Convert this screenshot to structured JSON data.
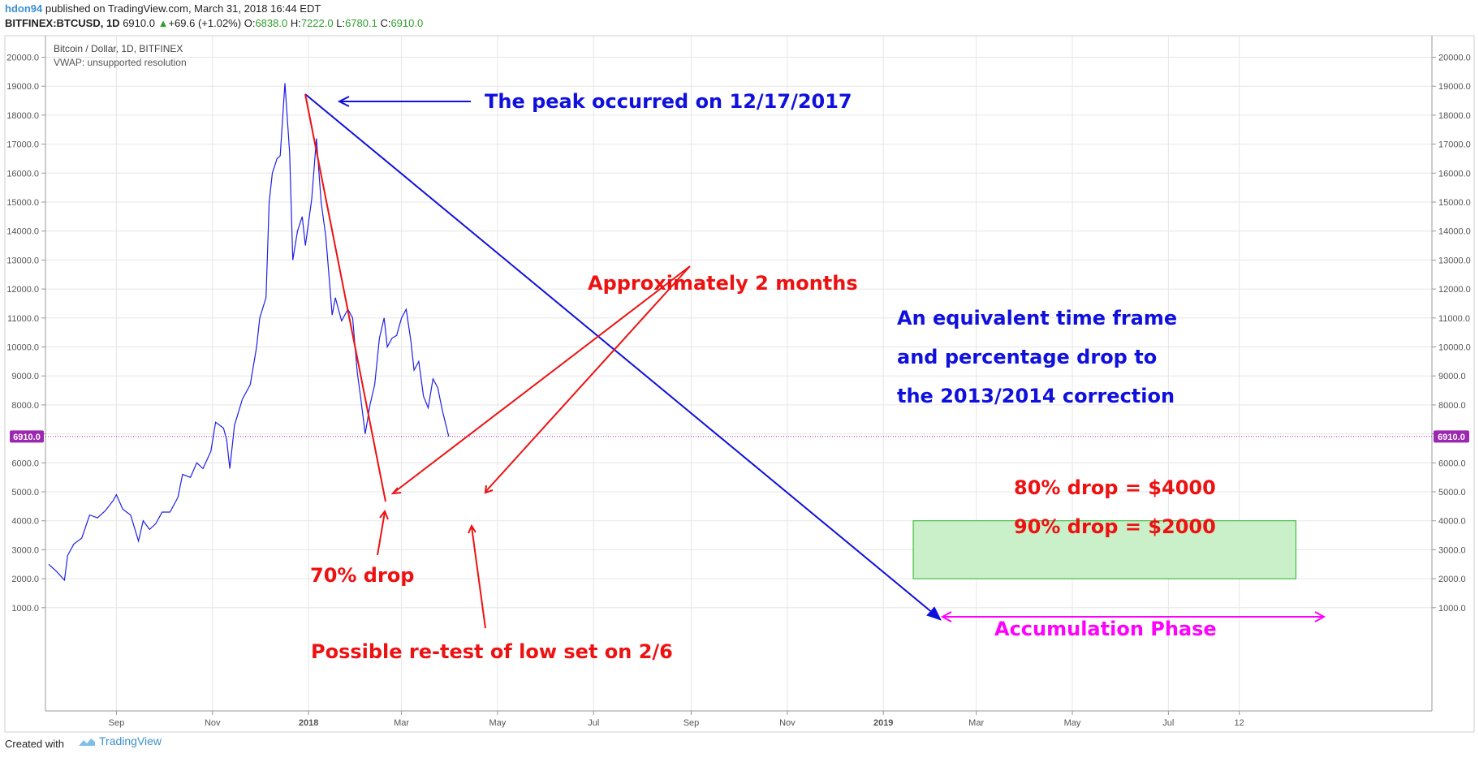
{
  "header": {
    "user": "hdon94",
    "published": "published on TradingView.com, March 31, 2018 16:44 EDT",
    "symbol": "BITFINEX:BTCUSD, 1D",
    "last": "6910.0",
    "change": "+69.6 (+1.02%)",
    "o_label": "O:",
    "o_value": "6838.0",
    "h_label": "H:",
    "h_value": "7222.0",
    "l_label": "L:",
    "l_value": "6780.1",
    "c_label": "C:",
    "c_value": "6910.0"
  },
  "footer": {
    "created_with": "Created with",
    "brand": "TradingView"
  },
  "colors": {
    "price": "#1f1fe8",
    "annotation_red": "#ee1111",
    "annotation_blue": "#1010dd",
    "magenta": "#ff00ff",
    "accum_fill": "#c9f0c9",
    "accum_border": "#28b428",
    "price_line": "#9c27b0",
    "grid": "#e4e4e4"
  },
  "chart_data": {
    "type": "line",
    "title": "Bitcoin / Dollar, 1D, BITFINEX",
    "subtitle": "VWAP: unsupported resolution",
    "ylim": [
      700,
      20700
    ],
    "y_ticks": [
      "20000.0",
      "19000.0",
      "18000.0",
      "17000.0",
      "16000.0",
      "15000.0",
      "14000.0",
      "13000.0",
      "12000.0",
      "11000.0",
      "10000.0",
      "9000.0",
      "8000.0",
      "7000.0",
      "6000.0",
      "5000.0",
      "4000.0",
      "3000.0",
      "2000.0",
      "1000.0"
    ],
    "x_ticks": [
      "Sep",
      "Nov",
      "2018",
      "Mar",
      "May",
      "Jul",
      "Sep",
      "Nov",
      "2019",
      "Mar",
      "May",
      "Jul",
      "12"
    ],
    "current_price_label": "6910.0",
    "current_price": 6910,
    "series": [
      {
        "x": [
          "2017-07-20",
          "2017-07-25",
          "2017-07-30",
          "2017-08-01",
          "2017-08-05",
          "2017-08-10",
          "2017-08-15",
          "2017-08-20",
          "2017-08-25",
          "2017-08-30",
          "2017-09-01",
          "2017-09-05",
          "2017-09-10",
          "2017-09-15",
          "2017-09-18",
          "2017-09-22",
          "2017-09-26",
          "2017-09-30",
          "2017-10-05",
          "2017-10-10",
          "2017-10-13",
          "2017-10-18",
          "2017-10-22",
          "2017-10-26",
          "2017-10-31",
          "2017-11-03",
          "2017-11-08",
          "2017-11-10",
          "2017-11-12",
          "2017-11-15",
          "2017-11-20",
          "2017-11-25",
          "2017-11-29",
          "2017-12-01",
          "2017-12-05",
          "2017-12-07",
          "2017-12-09",
          "2017-12-12",
          "2017-12-14",
          "2017-12-17",
          "2017-12-20",
          "2017-12-22",
          "2017-12-25",
          "2017-12-28",
          "2017-12-30",
          "2018-01-03",
          "2018-01-06",
          "2018-01-09",
          "2018-01-12",
          "2018-01-16",
          "2018-01-18",
          "2018-01-22",
          "2018-01-26",
          "2018-01-29",
          "2018-02-01",
          "2018-02-03",
          "2018-02-06",
          "2018-02-09",
          "2018-02-12",
          "2018-02-15",
          "2018-02-18",
          "2018-02-20",
          "2018-02-23",
          "2018-02-26",
          "2018-03-01",
          "2018-03-04",
          "2018-03-07",
          "2018-03-09",
          "2018-03-12",
          "2018-03-15",
          "2018-03-18",
          "2018-03-21",
          "2018-03-24",
          "2018-03-27",
          "2018-03-31"
        ],
        "y": [
          2500,
          2250,
          1950,
          2800,
          3200,
          3400,
          4200,
          4100,
          4350,
          4700,
          4900,
          4400,
          4200,
          3300,
          4000,
          3700,
          3900,
          4300,
          4300,
          4800,
          5600,
          5500,
          6000,
          5800,
          6400,
          7400,
          7200,
          6800,
          5800,
          7300,
          8200,
          8700,
          10000,
          11000,
          11700,
          15000,
          16000,
          16500,
          16600,
          19100,
          16700,
          13000,
          14000,
          14500,
          13500,
          15100,
          17200,
          15000,
          13800,
          11100,
          11700,
          10900,
          11300,
          11000,
          9100,
          8300,
          7000,
          8000,
          8700,
          10300,
          11000,
          10000,
          10300,
          10400,
          11000,
          11300,
          10200,
          9200,
          9500,
          8300,
          7900,
          8900,
          8600,
          7800,
          6910
        ]
      }
    ],
    "annotations": {
      "peak": "The peak occurred on 12/17/2017",
      "months": "Approximately 2 months",
      "equiv1": "An equivalent time frame",
      "equiv2": "and percentage drop to",
      "equiv3": "the 2013/2014 correction",
      "drop80": "80% drop = $4000",
      "drop90": "90% drop = $2000",
      "drop70": "70% drop",
      "retest": "Possible re-test of low set on 2/6",
      "accum": "Accumulation Phase"
    },
    "accumulation_zone": {
      "x_start": "2019-01-20",
      "x_end": "2019-09-20",
      "y_low": 2000,
      "y_high": 4000
    }
  }
}
